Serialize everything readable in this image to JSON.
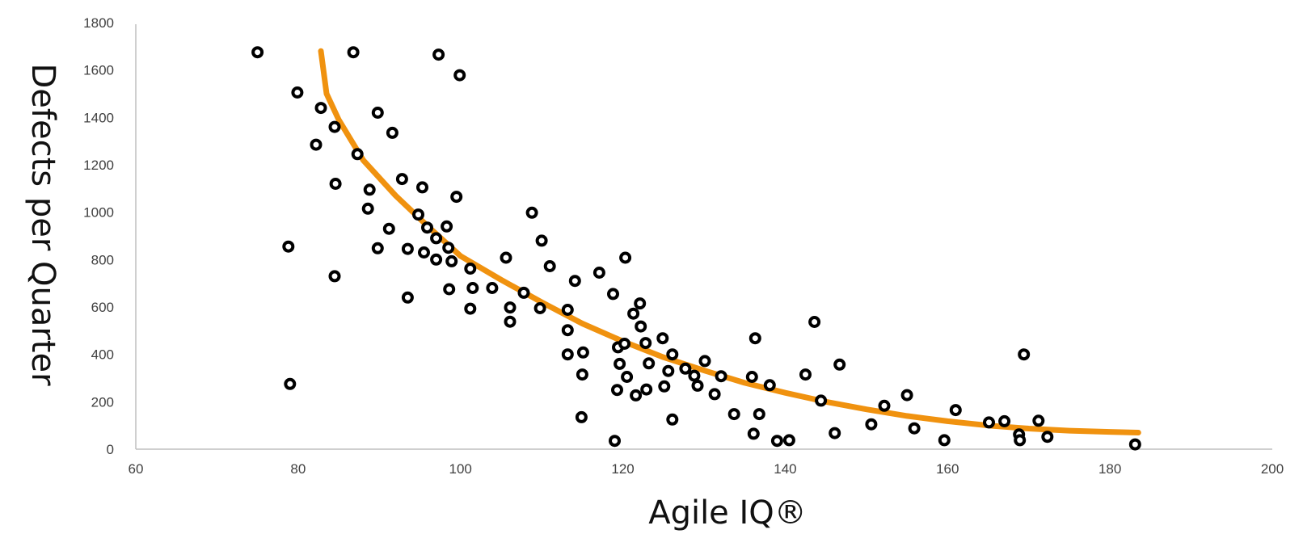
{
  "chart_data": {
    "type": "scatter",
    "title": "",
    "xlabel": "Agile IQ®",
    "ylabel": "Defects per Quarter",
    "xlim": [
      60,
      200
    ],
    "ylim": [
      0,
      1800
    ],
    "x_ticks": [
      "60",
      "80",
      "100",
      "120",
      "140",
      "160",
      "180",
      "200"
    ],
    "y_ticks": [
      "0",
      "200",
      "400",
      "600",
      "800",
      "1000",
      "1200",
      "1400",
      "1600",
      "1800"
    ],
    "grid": false,
    "legend": "none",
    "colors": {
      "marker": "#000000",
      "trendline": "#F0920F",
      "axis": "#BFBFBF"
    },
    "series": [
      {
        "marker": "hollow-circle",
        "points": [
          [
            75,
            1675
          ],
          [
            86.8,
            1675
          ],
          [
            97.3,
            1665
          ],
          [
            99.9,
            1578
          ],
          [
            79.9,
            1505
          ],
          [
            82.8,
            1440
          ],
          [
            89.8,
            1420
          ],
          [
            84.5,
            1360
          ],
          [
            91.6,
            1335
          ],
          [
            82.2,
            1285
          ],
          [
            87.3,
            1245
          ],
          [
            84.6,
            1120
          ],
          [
            92.8,
            1140
          ],
          [
            95.3,
            1105
          ],
          [
            88.8,
            1095
          ],
          [
            99.5,
            1065
          ],
          [
            88.6,
            1015
          ],
          [
            108.8,
            998
          ],
          [
            94.8,
            990
          ],
          [
            78.8,
            855
          ],
          [
            98.3,
            940
          ],
          [
            91.2,
            930
          ],
          [
            95.9,
            935
          ],
          [
            97.0,
            890
          ],
          [
            110,
            880
          ],
          [
            89.8,
            848
          ],
          [
            93.5,
            845
          ],
          [
            95.5,
            830
          ],
          [
            98.5,
            850
          ],
          [
            97.0,
            800
          ],
          [
            98.9,
            793
          ],
          [
            105.6,
            808
          ],
          [
            120.3,
            808
          ],
          [
            111,
            772
          ],
          [
            101.2,
            762
          ],
          [
            84.5,
            730
          ],
          [
            117.1,
            745
          ],
          [
            114.1,
            710
          ],
          [
            98.6,
            675
          ],
          [
            101.5,
            680
          ],
          [
            103.9,
            680
          ],
          [
            107.8,
            660
          ],
          [
            118.8,
            655
          ],
          [
            93.5,
            640
          ],
          [
            101.2,
            593
          ],
          [
            106.1,
            598
          ],
          [
            109.8,
            595
          ],
          [
            113.2,
            588
          ],
          [
            122.1,
            615
          ],
          [
            121.3,
            572
          ],
          [
            106.1,
            538
          ],
          [
            143.6,
            537
          ],
          [
            122.2,
            518
          ],
          [
            113.2,
            502
          ],
          [
            136.3,
            468
          ],
          [
            124.9,
            468
          ],
          [
            119.4,
            430
          ],
          [
            120.2,
            445
          ],
          [
            122.8,
            448
          ],
          [
            115.1,
            408
          ],
          [
            113.2,
            400
          ],
          [
            126.1,
            400
          ],
          [
            169.4,
            400
          ],
          [
            130.1,
            372
          ],
          [
            119.6,
            360
          ],
          [
            123.2,
            362
          ],
          [
            146.7,
            357
          ],
          [
            127.7,
            340
          ],
          [
            125.6,
            330
          ],
          [
            115.0,
            315
          ],
          [
            120.5,
            305
          ],
          [
            128.8,
            310
          ],
          [
            132.1,
            308
          ],
          [
            135.9,
            305
          ],
          [
            142.5,
            315
          ],
          [
            138.1,
            270
          ],
          [
            129.2,
            268
          ],
          [
            125.1,
            265
          ],
          [
            119.3,
            250
          ],
          [
            122.9,
            252
          ],
          [
            121.6,
            227
          ],
          [
            131.3,
            232
          ],
          [
            155,
            228
          ],
          [
            79,
            275
          ],
          [
            144.4,
            205
          ],
          [
            152.2,
            183
          ],
          [
            161,
            165
          ],
          [
            133.7,
            148
          ],
          [
            136.8,
            148
          ],
          [
            114.9,
            135
          ],
          [
            126.1,
            125
          ],
          [
            165.1,
            113
          ],
          [
            167,
            118
          ],
          [
            171.2,
            120
          ],
          [
            150.6,
            105
          ],
          [
            155.9,
            88
          ],
          [
            136.1,
            65
          ],
          [
            146.1,
            68
          ],
          [
            168.8,
            62
          ],
          [
            172.3,
            52
          ],
          [
            119,
            35
          ],
          [
            139,
            35
          ],
          [
            140.5,
            38
          ],
          [
            159.6,
            38
          ],
          [
            168.9,
            38
          ],
          [
            183.1,
            20
          ]
        ]
      }
    ],
    "trendline": {
      "type": "power",
      "points": [
        [
          82.8,
          1680
        ],
        [
          83.5,
          1500
        ],
        [
          85,
          1390
        ],
        [
          88,
          1220
        ],
        [
          92,
          1070
        ],
        [
          96,
          940
        ],
        [
          100,
          815
        ],
        [
          105,
          715
        ],
        [
          110,
          620
        ],
        [
          115,
          530
        ],
        [
          120,
          455
        ],
        [
          125,
          388
        ],
        [
          130,
          332
        ],
        [
          135,
          280
        ],
        [
          140,
          238
        ],
        [
          145,
          200
        ],
        [
          150,
          168
        ],
        [
          155,
          140
        ],
        [
          160,
          118
        ],
        [
          165,
          100
        ],
        [
          170,
          87
        ],
        [
          175,
          78
        ],
        [
          180,
          73
        ],
        [
          183.5,
          70
        ]
      ]
    }
  }
}
